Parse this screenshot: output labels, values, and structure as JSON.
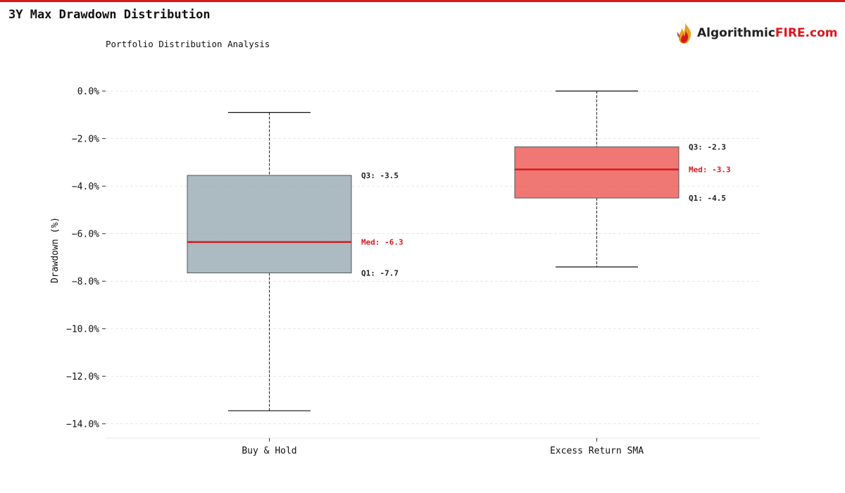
{
  "header": {
    "title": "3Y Max Drawdown Distribution",
    "subtitle": "Portfolio Distribution Analysis"
  },
  "logo": {
    "icon": "flame-icon",
    "text_main": "Algorithmic",
    "text_accent": "FIRE.com"
  },
  "colors": {
    "accent": "#d7191c",
    "grid": "#dddddd",
    "whisker": "#222222"
  },
  "chart_data": {
    "type": "boxplot",
    "ylabel": "Drawdown (%)",
    "ylim": [
      -14.6,
      0.6
    ],
    "yticks": [
      0,
      -2,
      -4,
      -6,
      -8,
      -10,
      -12,
      -14
    ],
    "ytick_labels": [
      "0.0%",
      "−2.0%",
      "−4.0%",
      "−6.0%",
      "−8.0%",
      "−10.0%",
      "−12.0%",
      "−14.0%"
    ],
    "grid": true,
    "categories": [
      "Buy & Hold",
      "Excess Return SMA"
    ],
    "series": [
      {
        "name": "Buy & Hold",
        "whisker_high": -0.9,
        "q3": -3.55,
        "median": -6.35,
        "q1": -7.65,
        "whisker_low": -13.45,
        "color": "#9aabb3",
        "labels": {
          "q3": "Q3: -3.5",
          "median": "Med: -6.3",
          "q1": "Q1: -7.7"
        }
      },
      {
        "name": "Excess Return SMA",
        "whisker_high": 0.0,
        "q3": -2.35,
        "median": -3.3,
        "q1": -4.5,
        "whisker_low": -7.4,
        "color": "#eb5a55",
        "labels": {
          "q3": "Q3: -2.3",
          "median": "Med: -3.3",
          "q1": "Q1: -4.5"
        }
      }
    ]
  }
}
